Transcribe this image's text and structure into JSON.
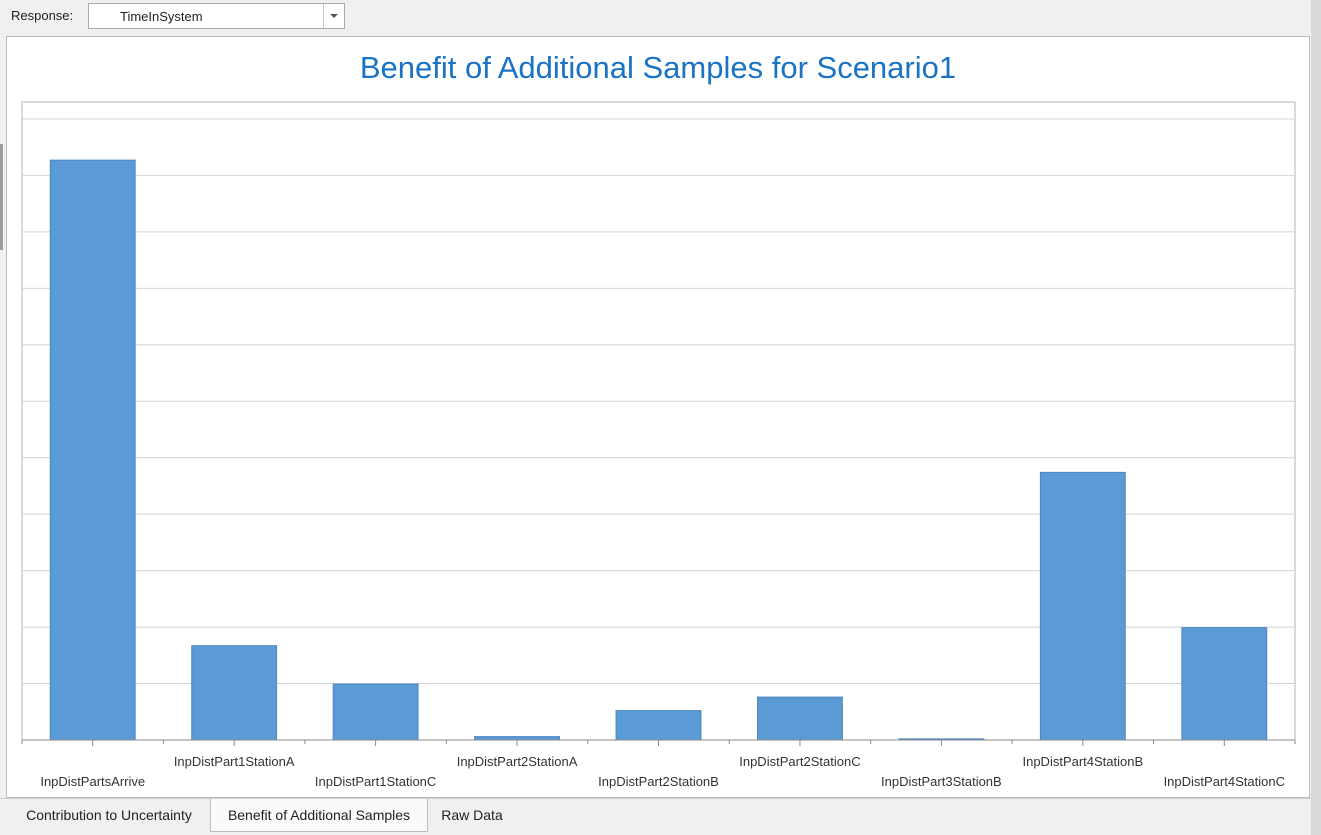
{
  "response": {
    "label": "Response:",
    "value": "TimeInSystem"
  },
  "tabs": [
    {
      "label": "Contribution to Uncertainty",
      "active": false
    },
    {
      "label": "Benefit of Additional Samples",
      "active": true
    },
    {
      "label": "Raw Data",
      "active": false
    }
  ],
  "colors": {
    "bar": "#5b9bd5",
    "bar_border": "#4a86c0",
    "title": "#1a73c4",
    "grid": "#d4d4d4"
  },
  "chart_data": {
    "type": "bar",
    "title": "Benefit of Additional Samples for Scenario1",
    "xlabel": "",
    "ylabel": "",
    "categories": [
      "InpDistPartsArrive",
      "InpDistPart1StationA",
      "InpDistPart1StationC",
      "InpDistPart2StationA",
      "InpDistPart2StationB",
      "InpDistPart2StationC",
      "InpDistPart3StationB",
      "InpDistPart4StationB",
      "InpDistPart4StationC"
    ],
    "values": [
      10.27,
      1.67,
      0.99,
      0.06,
      0.52,
      0.76,
      0.02,
      4.74,
      1.99
    ],
    "ylim": [
      0,
      11.3
    ],
    "grid_step": 1,
    "grid": true,
    "legend": "none"
  }
}
